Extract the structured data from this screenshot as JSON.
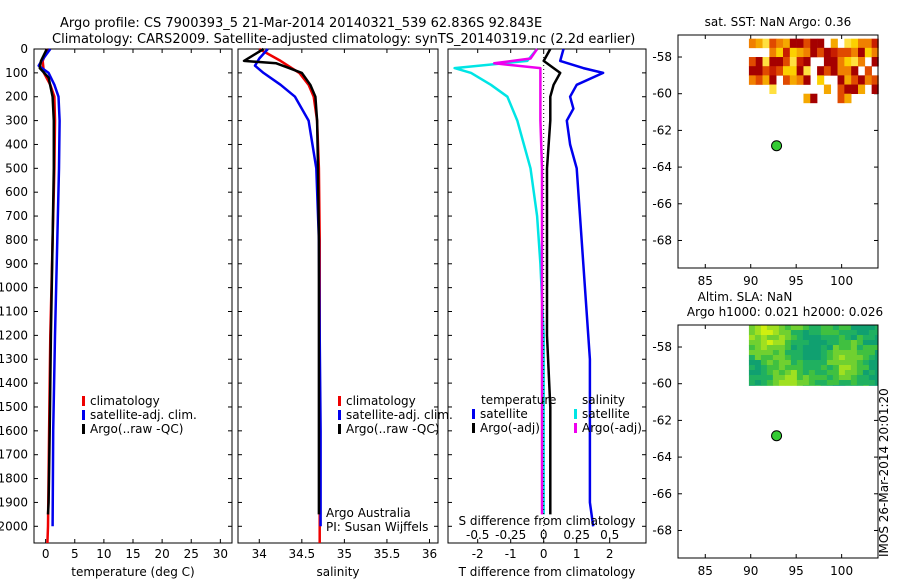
{
  "header": {
    "title_line1": "Argo profile: CS 7900393_5 21-Mar-2014 20140321_539 62.836S 92.843E",
    "title_line2": "Climatology: CARS2009. Satellite-adjusted climatology: synTS_20140319.nc (2.2d earlier)"
  },
  "colors": {
    "climatology": "#ee0000",
    "satellite": "#0000ee",
    "argo": "#000000",
    "sat_salinity": "#00e5e5",
    "argo_salinity": "#ee00ee"
  },
  "depth_ticks": [
    "0",
    "100",
    "200",
    "300",
    "400",
    "500",
    "600",
    "700",
    "800",
    "900",
    "1000",
    "1100",
    "1200",
    "1300",
    "1400",
    "1500",
    "1600",
    "1700",
    "1800",
    "1900",
    "2000"
  ],
  "chart_data": [
    {
      "type": "line",
      "id": "temperature",
      "xlabel": "temperature (deg C)",
      "xlim": [
        -2,
        32
      ],
      "ylim": [
        0,
        2070
      ],
      "xticks": [
        "0",
        "5",
        "10",
        "15",
        "20",
        "25",
        "30"
      ],
      "legend": [
        "climatology",
        "satellite-adj. clim.",
        "Argo(..raw -QC)"
      ],
      "series": [
        {
          "name": "climatology",
          "depth": [
            0,
            50,
            100,
            150,
            200,
            300,
            500,
            800,
            1200,
            1600,
            2000,
            2070
          ],
          "values": [
            0.3,
            -0.5,
            -0.3,
            0.8,
            1.5,
            1.6,
            1.5,
            1.2,
            0.8,
            0.6,
            0.4,
            0.3
          ]
        },
        {
          "name": "satellite-adj. clim.",
          "depth": [
            0,
            50,
            70,
            100,
            150,
            200,
            300,
            500,
            800,
            1200,
            1600,
            2000
          ],
          "values": [
            0.8,
            -0.7,
            -1.2,
            0.5,
            1.5,
            2.2,
            2.4,
            2.3,
            2.0,
            1.6,
            1.3,
            1.2
          ]
        },
        {
          "name": "Argo(..raw -QC)",
          "depth": [
            0,
            50,
            80,
            120,
            200,
            300,
            500,
            800,
            1200,
            1600,
            1900,
            1950
          ],
          "values": [
            0.2,
            -0.8,
            -1.0,
            0.5,
            1.2,
            1.4,
            1.4,
            1.2,
            0.9,
            0.7,
            0.5,
            0.4
          ]
        }
      ]
    },
    {
      "type": "line",
      "id": "salinity",
      "xlabel": "salinity",
      "xlim": [
        33.75,
        36.1
      ],
      "ylim": [
        0,
        2070
      ],
      "xticks": [
        "34",
        "34.5",
        "35",
        "35.5",
        "36"
      ],
      "legend": [
        "climatology",
        "satellite-adj. clim.",
        "Argo(..raw -QC)"
      ],
      "credit1": "Argo Australia",
      "credit2": "PI: Susan Wijffels",
      "series": [
        {
          "name": "climatology",
          "depth": [
            0,
            50,
            100,
            150,
            200,
            300,
            500,
            800,
            1200,
            1600,
            2000,
            2070
          ],
          "values": [
            34.0,
            34.25,
            34.47,
            34.58,
            34.64,
            34.68,
            34.7,
            34.71,
            34.71,
            34.71,
            34.71,
            34.71
          ]
        },
        {
          "name": "satellite-adj. clim.",
          "depth": [
            0,
            40,
            70,
            100,
            150,
            200,
            300,
            500,
            800,
            1200,
            1600,
            2000
          ],
          "values": [
            34.1,
            34.0,
            33.95,
            34.05,
            34.25,
            34.42,
            34.58,
            34.67,
            34.7,
            34.71,
            34.72,
            34.72
          ]
        },
        {
          "name": "Argo(..raw -QC)",
          "depth": [
            0,
            50,
            60,
            80,
            100,
            150,
            200,
            300,
            500,
            800,
            1200,
            1600,
            1950
          ],
          "values": [
            34.05,
            33.82,
            34.2,
            34.35,
            34.5,
            34.6,
            34.66,
            34.68,
            34.69,
            34.7,
            34.7,
            34.7,
            34.7
          ]
        }
      ]
    },
    {
      "type": "line",
      "id": "difference",
      "xlabel": "T difference from climatology",
      "xlabel_top": "S difference from climatology",
      "xlim": [
        -2.9,
        3.1
      ],
      "ylim": [
        0,
        2070
      ],
      "xticks": [
        "-2",
        "-1",
        "0",
        "1",
        "2"
      ],
      "xticks_top": [
        "-0.5",
        "-0.25",
        "0",
        "0.25",
        "0.5"
      ],
      "legend_titles": [
        "temperature",
        "salinity"
      ],
      "legend": [
        "satellite",
        "Argo(-adj)",
        "satellite",
        "Argo(-adj)"
      ],
      "series": [
        {
          "name": "temperature satellite",
          "depth": [
            0,
            50,
            80,
            100,
            150,
            200,
            250,
            300,
            400,
            500,
            700,
            900,
            1100,
            1300,
            1500,
            1700,
            1900,
            2000
          ],
          "values": [
            0.6,
            0.5,
            1.2,
            1.8,
            1.0,
            0.8,
            0.9,
            0.7,
            0.8,
            1.0,
            1.1,
            1.2,
            1.3,
            1.4,
            1.4,
            1.4,
            1.4,
            1.5
          ]
        },
        {
          "name": "temperature Argo(-adj)",
          "depth": [
            0,
            50,
            80,
            100,
            150,
            200,
            300,
            500,
            700,
            900,
            1200,
            1500,
            1700,
            1950
          ],
          "values": [
            0.2,
            0.0,
            0.3,
            0.5,
            0.3,
            0.2,
            0.2,
            0.1,
            0.1,
            0.1,
            0.1,
            0.2,
            0.2,
            0.2
          ]
        },
        {
          "name": "salinity satellite",
          "depth": [
            0,
            50,
            80,
            100,
            150,
            200,
            300,
            400,
            500,
            700,
            900,
            1200,
            1500,
            1700,
            1950
          ],
          "values": [
            -0.2,
            -0.5,
            -2.7,
            -2.2,
            -1.6,
            -1.1,
            -0.8,
            -0.6,
            -0.4,
            -0.2,
            -0.1,
            0.0,
            0.0,
            0.0,
            0.0
          ]
        },
        {
          "name": "salinity Argo(-adj)",
          "depth": [
            0,
            40,
            60,
            80,
            100,
            150,
            200,
            300,
            500,
            800,
            1200,
            1600,
            1950
          ],
          "values": [
            -0.2,
            -0.4,
            -1.5,
            -0.1,
            -0.1,
            -0.1,
            -0.1,
            -0.1,
            -0.05,
            -0.05,
            -0.05,
            -0.05,
            -0.05
          ]
        }
      ]
    },
    {
      "type": "scatter",
      "id": "sst_map",
      "title": "sat. SST: NaN Argo: 0.36",
      "xlim": [
        82,
        104
      ],
      "ylim": [
        -69.5,
        -56.8
      ],
      "xticks": [
        "85",
        "90",
        "95",
        "100"
      ],
      "yticks": [
        "-58",
        "-60",
        "-62",
        "-64",
        "-66",
        "-68"
      ],
      "point": {
        "lon": 92.843,
        "lat": -62.836
      }
    },
    {
      "type": "heatmap",
      "id": "sla_map",
      "title1": "Altim. SLA: NaN",
      "title2": "Argo h1000: 0.021 h2000: 0.026",
      "xlim": [
        82,
        104
      ],
      "ylim": [
        -69.5,
        -56.8
      ],
      "xticks": [
        "85",
        "90",
        "95",
        "100"
      ],
      "yticks": [
        "-58",
        "-60",
        "-62",
        "-64",
        "-66",
        "-68"
      ],
      "point": {
        "lon": 92.843,
        "lat": -62.836
      }
    }
  ],
  "watermark": "IMOS 26-Mar-2014 20:01:20"
}
